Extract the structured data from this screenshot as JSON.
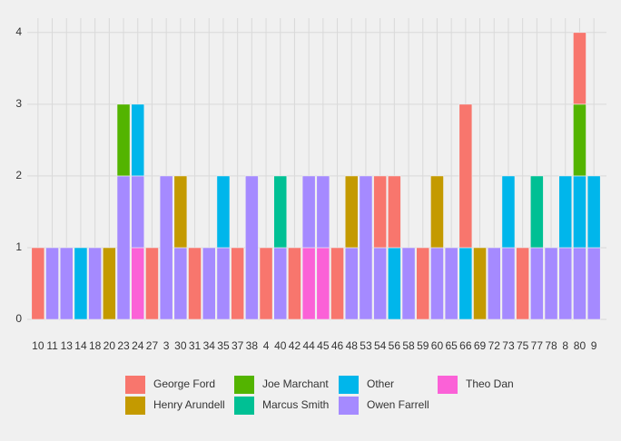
{
  "chart_data": {
    "type": "stacked_bar",
    "categories": [
      "10",
      "11",
      "13",
      "14",
      "18",
      "20",
      "23",
      "24",
      "27",
      "3",
      "30",
      "31",
      "34",
      "35",
      "37",
      "38",
      "4",
      "40",
      "42",
      "44",
      "45",
      "46",
      "48",
      "53",
      "54",
      "56",
      "58",
      "59",
      "60",
      "65",
      "66",
      "69",
      "72",
      "73",
      "75",
      "77",
      "78",
      "8",
      "80",
      "9"
    ],
    "series": [
      {
        "name": "George Ford",
        "color": "#F8766D",
        "values": [
          1,
          0,
          0,
          0,
          0,
          0,
          0,
          0,
          1,
          0,
          0,
          1,
          0,
          0,
          1,
          0,
          1,
          0,
          1,
          0,
          0,
          1,
          0,
          0,
          1,
          1,
          0,
          1,
          0,
          0,
          2,
          0,
          0,
          0,
          1,
          0,
          0,
          0,
          1,
          0
        ]
      },
      {
        "name": "Henry Arundell",
        "color": "#C49A00",
        "values": [
          0,
          0,
          0,
          0,
          0,
          1,
          0,
          0,
          0,
          0,
          1,
          0,
          0,
          0,
          0,
          0,
          0,
          0,
          0,
          0,
          0,
          0,
          1,
          0,
          0,
          0,
          0,
          0,
          1,
          0,
          0,
          1,
          0,
          0,
          0,
          0,
          0,
          0,
          0,
          0
        ]
      },
      {
        "name": "Joe Marchant",
        "color": "#53B400",
        "values": [
          0,
          0,
          0,
          0,
          0,
          0,
          1,
          0,
          0,
          0,
          0,
          0,
          0,
          0,
          0,
          0,
          0,
          0,
          0,
          0,
          0,
          0,
          0,
          0,
          0,
          0,
          0,
          0,
          0,
          0,
          0,
          0,
          0,
          0,
          0,
          0,
          0,
          0,
          1,
          0
        ]
      },
      {
        "name": "Marcus Smith",
        "color": "#00C094",
        "values": [
          0,
          0,
          0,
          0,
          0,
          0,
          0,
          0,
          0,
          0,
          0,
          0,
          0,
          0,
          0,
          0,
          0,
          1,
          0,
          0,
          0,
          0,
          0,
          0,
          0,
          0,
          0,
          0,
          0,
          0,
          0,
          0,
          0,
          0,
          0,
          1,
          0,
          0,
          0,
          0
        ]
      },
      {
        "name": "Other",
        "color": "#00B6EB",
        "values": [
          0,
          0,
          0,
          1,
          0,
          0,
          0,
          1,
          0,
          0,
          0,
          0,
          0,
          1,
          0,
          0,
          0,
          0,
          0,
          0,
          0,
          0,
          0,
          0,
          0,
          1,
          0,
          0,
          0,
          0,
          1,
          0,
          0,
          1,
          0,
          0,
          0,
          1,
          1,
          1
        ]
      },
      {
        "name": "Owen Farrell",
        "color": "#A58AFF",
        "values": [
          0,
          1,
          1,
          0,
          1,
          0,
          2,
          1,
          0,
          2,
          1,
          0,
          1,
          1,
          0,
          2,
          0,
          1,
          0,
          1,
          1,
          0,
          1,
          2,
          1,
          0,
          1,
          0,
          1,
          1,
          0,
          0,
          1,
          1,
          0,
          1,
          1,
          1,
          1,
          1
        ]
      },
      {
        "name": "Theo Dan",
        "color": "#FB61D7",
        "values": [
          0,
          0,
          0,
          0,
          0,
          0,
          0,
          1,
          0,
          0,
          0,
          0,
          0,
          0,
          0,
          0,
          0,
          0,
          0,
          1,
          1,
          0,
          0,
          0,
          0,
          0,
          0,
          0,
          0,
          0,
          0,
          0,
          0,
          0,
          0,
          0,
          0,
          0,
          0,
          0
        ]
      }
    ],
    "ylim": [
      0,
      4.2
    ],
    "yticks": [
      0,
      1,
      2,
      3,
      4
    ],
    "grid": true
  }
}
